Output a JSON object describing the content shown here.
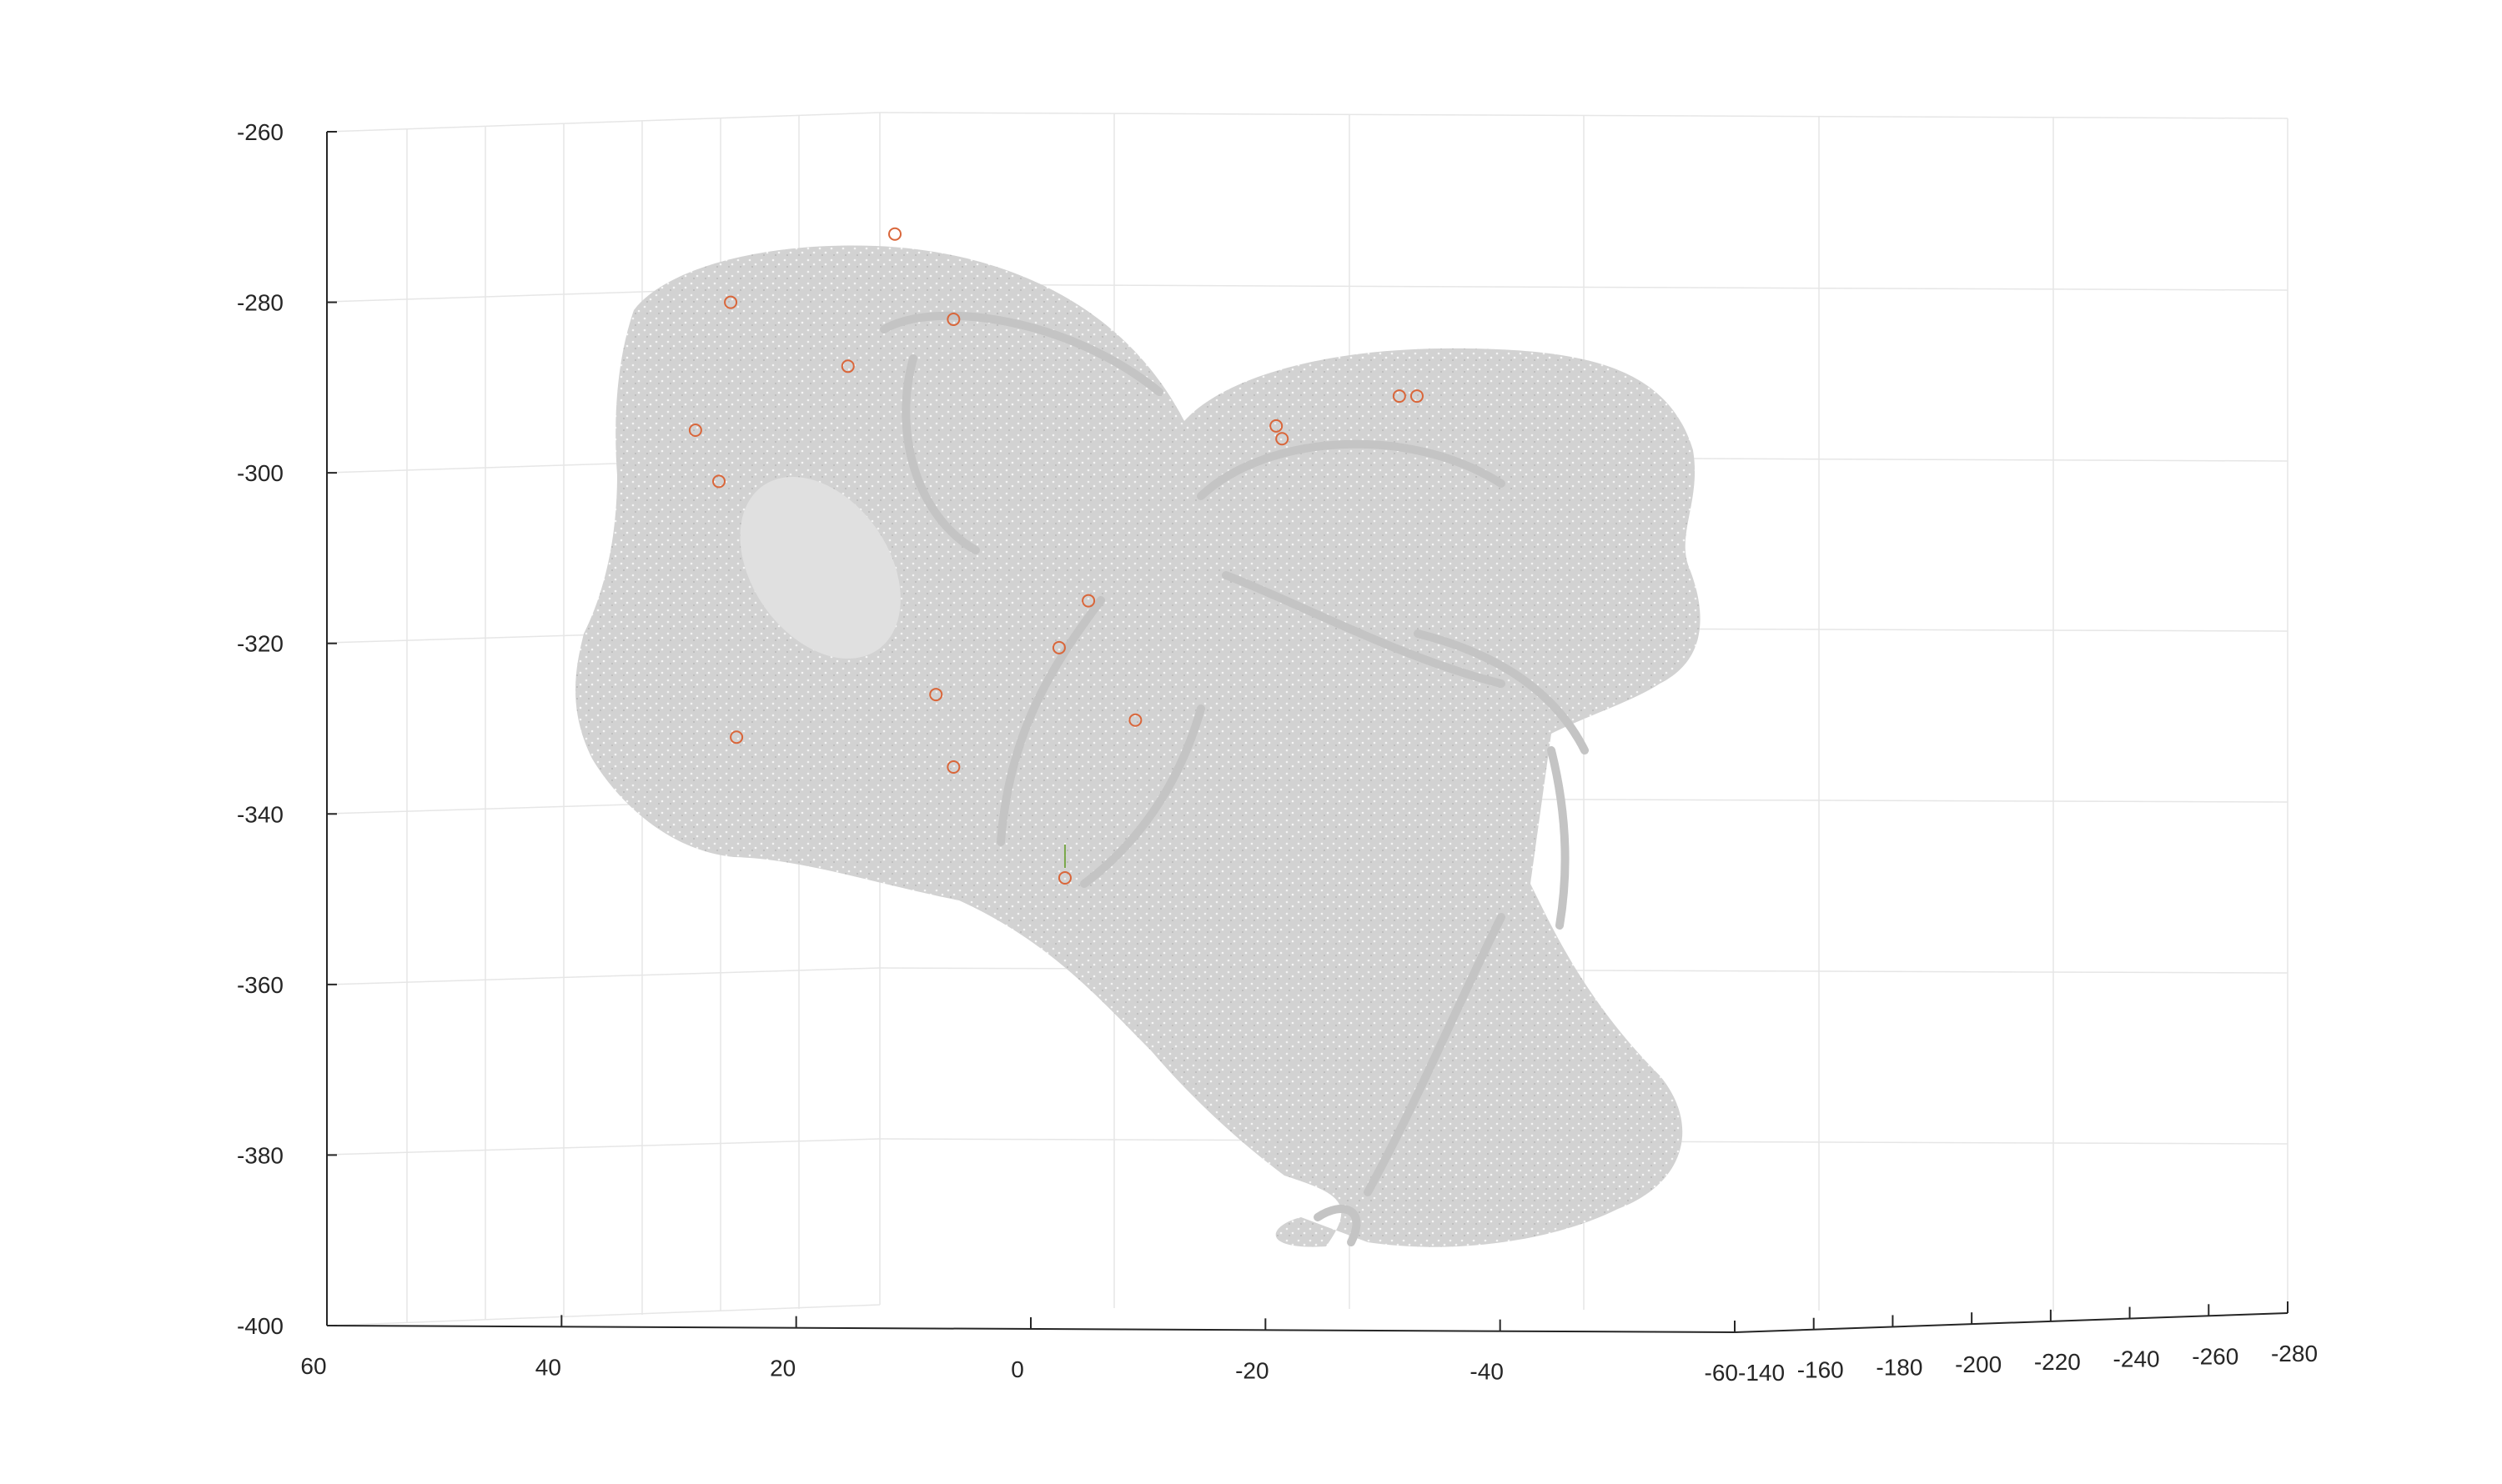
{
  "chart_data": {
    "type": "scatter",
    "title": "",
    "xlabel": "",
    "ylabel": "",
    "zlabel": "",
    "grid": true,
    "colors": {
      "cloud": "#c8c8c8",
      "markers": "#d9663a",
      "stem": "#7aa84a",
      "axis": "#262626",
      "grid": "#e6e6e6"
    },
    "x_axis": {
      "ticks": [
        60,
        40,
        20,
        0,
        -20,
        -40,
        -60
      ],
      "range": [
        60,
        -60
      ]
    },
    "y_axis": {
      "ticks": [
        -140,
        -160,
        -180,
        -200,
        -220,
        -240,
        -260,
        -280
      ],
      "range": [
        -140,
        -280
      ]
    },
    "z_axis": {
      "ticks": [
        -260,
        -280,
        -300,
        -320,
        -340,
        -360,
        -380,
        -400
      ],
      "range": [
        -400,
        -260
      ]
    },
    "series": [
      {
        "points": [
          {
            "x": 15.0,
            "z": -272
          },
          {
            "x": 29.0,
            "z": -280
          },
          {
            "x": 10.0,
            "z": -282
          },
          {
            "x": 19.0,
            "z": -287.5
          },
          {
            "x": 32.0,
            "z": -295
          },
          {
            "x": 30.0,
            "z": -301
          },
          {
            "x": -28.0,
            "z": -291
          },
          {
            "x": -29.5,
            "z": -291
          },
          {
            "x": -17.5,
            "z": -294.5
          },
          {
            "x": -18.0,
            "z": -296
          },
          {
            "x": -1.5,
            "z": -315
          },
          {
            "x": 1.0,
            "z": -320.5
          },
          {
            "x": 11.5,
            "z": -326
          },
          {
            "x": -5.5,
            "z": -329
          },
          {
            "x": 28.5,
            "z": -331
          },
          {
            "x": 10.0,
            "z": -334.5
          },
          {
            "x": 0.5,
            "z": -347.5
          }
        ]
      }
    ]
  }
}
